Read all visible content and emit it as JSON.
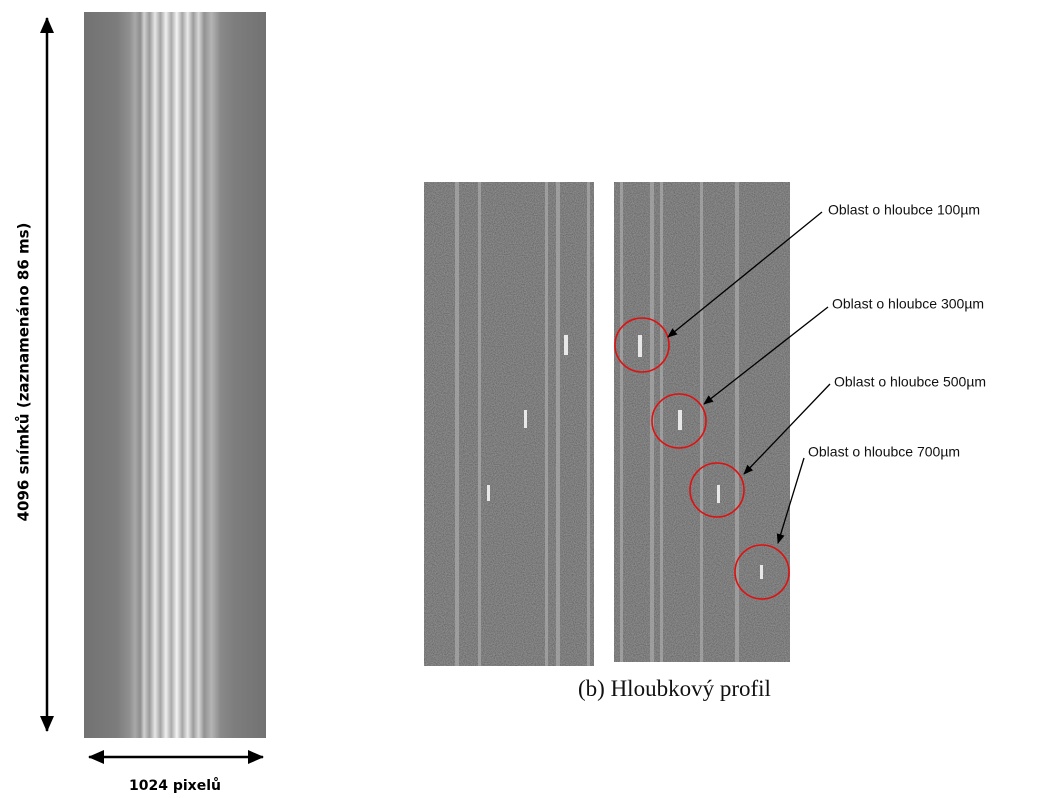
{
  "left_panel": {
    "vertical_label": "4096 snímků (zaznamenáno 86 ms)",
    "horizontal_label": "1024 pixelů"
  },
  "right_panel": {
    "caption": "(b) Hloubkový profil",
    "annotations": [
      "Oblast o hloubce 100µm",
      "Oblast o hloubce 300µm",
      "Oblast o hloubce 500µm",
      "Oblast o hloubce 700µm"
    ]
  }
}
